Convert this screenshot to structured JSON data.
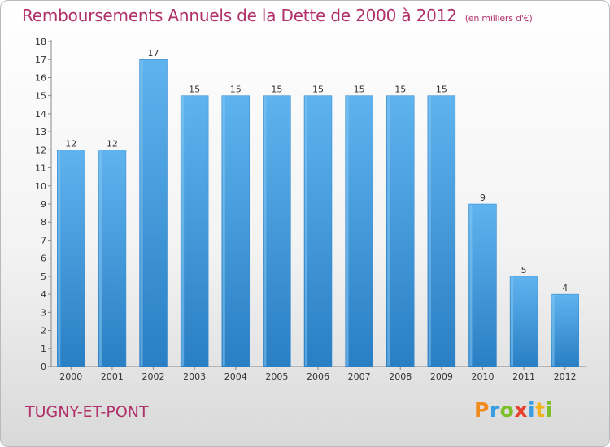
{
  "title": "Remboursements Annuels de la Dette de 2000 à 2012",
  "unit_note": "(en milliers d'€)",
  "commune": "TUGNY-ET-PONT",
  "logo": {
    "letters": [
      "P",
      "r",
      "o",
      "x",
      "i",
      "t",
      "i"
    ],
    "colors": [
      "#f28b1e",
      "#3a9de0",
      "#7cbf2a",
      "#e8402a",
      "#3a9de0",
      "#f2b21e",
      "#7cbf2a"
    ]
  },
  "colors": {
    "bar": "#3f9be0",
    "bar_light": "#5aaeea",
    "title": "#b0306a"
  },
  "chart_data": {
    "type": "bar",
    "categories": [
      "2000",
      "2001",
      "2002",
      "2003",
      "2004",
      "2005",
      "2006",
      "2007",
      "2008",
      "2009",
      "2010",
      "2011",
      "2012"
    ],
    "values": [
      12,
      12,
      17,
      15,
      15,
      15,
      15,
      15,
      15,
      15,
      9,
      5,
      4
    ],
    "ylim": [
      0,
      18
    ],
    "yticks": [
      0,
      1,
      2,
      3,
      4,
      5,
      6,
      7,
      8,
      9,
      10,
      11,
      12,
      13,
      14,
      15,
      16,
      17,
      18
    ],
    "grid": false,
    "data_labels": true
  }
}
